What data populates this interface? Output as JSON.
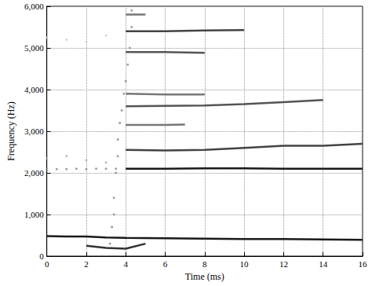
{
  "chart_data": {
    "type": "line",
    "x_label": "Time (ms)",
    "y_label": "Frequency (Hz)",
    "xlim": [
      0,
      16
    ],
    "xticks": [
      0,
      2,
      4,
      6,
      8,
      10,
      12,
      14,
      16
    ],
    "ylim": [
      0,
      6000
    ],
    "yticks": [
      0,
      1000,
      2000,
      3000,
      4000,
      5000,
      6000
    ],
    "grid": true,
    "series": [
      {
        "type": "line",
        "color": "#1a1a1a",
        "line_style": "solid",
        "values": [
          [
            0,
            480
          ],
          [
            1,
            470
          ],
          [
            2,
            470
          ],
          [
            3,
            450
          ],
          [
            4,
            440
          ],
          [
            6,
            430
          ],
          [
            8,
            420
          ],
          [
            10,
            410
          ],
          [
            12,
            410
          ],
          [
            14,
            400
          ],
          [
            16,
            390
          ]
        ]
      },
      {
        "type": "line",
        "color": "#1a1a1a",
        "line_style": "solid",
        "values": [
          [
            4,
            2100
          ],
          [
            6,
            2100
          ],
          [
            8,
            2110
          ],
          [
            10,
            2110
          ],
          [
            12,
            2100
          ],
          [
            14,
            2100
          ],
          [
            16,
            2100
          ]
        ]
      },
      {
        "type": "scatter",
        "color": "#888888",
        "marker": "circle",
        "values": [
          [
            0,
            2080
          ],
          [
            0.5,
            2090
          ],
          [
            1,
            2090
          ],
          [
            1.5,
            2100
          ],
          [
            2,
            2090
          ],
          [
            2.5,
            2100
          ],
          [
            3,
            2100
          ],
          [
            3.5,
            2100
          ]
        ]
      },
      {
        "type": "line",
        "color": "#444444",
        "line_style": "solid",
        "values": [
          [
            4,
            2550
          ],
          [
            6,
            2540
          ],
          [
            8,
            2550
          ],
          [
            10,
            2600
          ],
          [
            12,
            2650
          ],
          [
            14,
            2650
          ],
          [
            16,
            2700
          ]
        ]
      },
      {
        "type": "line",
        "color": "#777777",
        "line_style": "solid",
        "values": [
          [
            4,
            3150
          ],
          [
            5,
            3150
          ],
          [
            6,
            3150
          ],
          [
            7,
            3160
          ]
        ]
      },
      {
        "type": "line",
        "color": "#555555",
        "line_style": "solid",
        "values": [
          [
            4,
            3600
          ],
          [
            6,
            3610
          ],
          [
            8,
            3620
          ],
          [
            10,
            3650
          ],
          [
            12,
            3700
          ],
          [
            14,
            3750
          ]
        ]
      },
      {
        "type": "line",
        "color": "#777777",
        "line_style": "solid",
        "values": [
          [
            4,
            3900
          ],
          [
            6,
            3880
          ],
          [
            8,
            3880
          ]
        ]
      },
      {
        "type": "line",
        "color": "#555555",
        "line_style": "solid",
        "values": [
          [
            4,
            4900
          ],
          [
            6,
            4900
          ],
          [
            8,
            4880
          ]
        ]
      },
      {
        "type": "line",
        "color": "#444444",
        "line_style": "solid",
        "values": [
          [
            4,
            5400
          ],
          [
            6,
            5400
          ],
          [
            8,
            5420
          ],
          [
            10,
            5430
          ]
        ]
      },
      {
        "type": "line",
        "color": "#777777",
        "line_style": "solid",
        "values": [
          [
            4,
            5800
          ],
          [
            5,
            5800
          ]
        ]
      },
      {
        "type": "scatter",
        "color": "#888888",
        "marker": "circle",
        "values": [
          [
            3.2,
            300
          ],
          [
            3.3,
            700
          ],
          [
            3.4,
            1000
          ],
          [
            3.4,
            1400
          ],
          [
            3.5,
            2000
          ],
          [
            3.6,
            2400
          ],
          [
            3.6,
            2800
          ],
          [
            3.7,
            3200
          ],
          [
            3.8,
            3500
          ],
          [
            3.9,
            3900
          ],
          [
            4,
            4200
          ],
          [
            4.1,
            4600
          ],
          [
            4.2,
            5000
          ],
          [
            4.3,
            5500
          ],
          [
            4.3,
            5900
          ]
        ]
      },
      {
        "type": "line",
        "color": "#333333",
        "line_style": "solid",
        "values": [
          [
            2,
            250
          ],
          [
            3,
            200
          ],
          [
            4,
            180
          ],
          [
            5,
            300
          ]
        ]
      },
      {
        "type": "scatter",
        "color": "#cccccc",
        "marker": "circle",
        "values": [
          [
            0,
            5250
          ],
          [
            1,
            5200
          ],
          [
            2,
            5150
          ],
          [
            3,
            5300
          ]
        ]
      },
      {
        "type": "scatter",
        "color": "#aaaaaa",
        "marker": "circle",
        "values": [
          [
            0,
            2350
          ],
          [
            1,
            2400
          ],
          [
            2,
            2300
          ],
          [
            3,
            2250
          ]
        ]
      }
    ]
  }
}
